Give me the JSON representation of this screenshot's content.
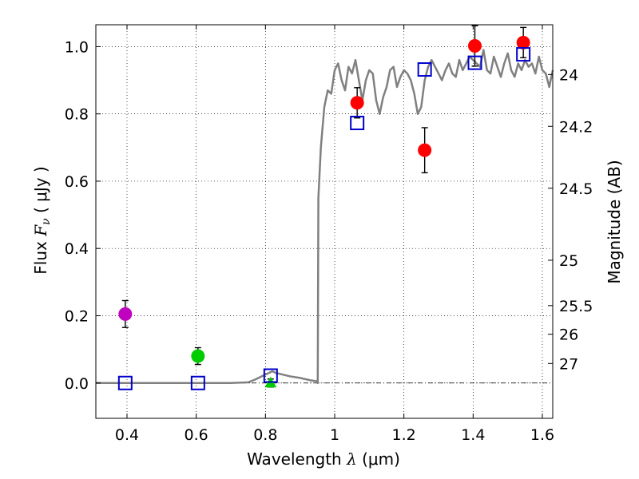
{
  "chart_data": {
    "type": "scatter",
    "xlabel_prefix": "Wavelength  ",
    "xlabel_symbol": "λ",
    "xlabel_suffix": " (μm)",
    "ylabel_prefix": "Flux  ",
    "ylabel_symbol": "F",
    "ylabel_subscript": "ν",
    "ylabel_suffix": "  ( μJy )",
    "y2label": "Magnitude (AB)",
    "xlim": [
      0.31,
      1.63
    ],
    "ylim": [
      -0.105,
      1.065
    ],
    "x_ticks": [
      0.4,
      0.6,
      0.8,
      1.0,
      1.2,
      1.4,
      1.6
    ],
    "x_tick_labels": [
      "0.4",
      "0.6",
      "0.8",
      "1",
      "1.2",
      "1.4",
      "1.6"
    ],
    "y_ticks": [
      0.0,
      0.2,
      0.4,
      0.6,
      0.8,
      1.0
    ],
    "y_tick_labels": [
      "0.0",
      "0.2",
      "0.4",
      "0.6",
      "0.8",
      "1.0"
    ],
    "mag_ticks": [
      {
        "label": "24",
        "flux": 0.917
      },
      {
        "label": "24.2",
        "flux": 0.763
      },
      {
        "label": "24.5",
        "flux": 0.579
      },
      {
        "label": "25",
        "flux": 0.365
      },
      {
        "label": "25.5",
        "flux": 0.23
      },
      {
        "label": "26",
        "flux": 0.145
      },
      {
        "label": "27",
        "flux": 0.058
      }
    ],
    "grid": true,
    "zero_line": true,
    "model_spectrum": {
      "name": "model SED",
      "color": "#808080",
      "x": [
        0.31,
        0.5,
        0.7,
        0.75,
        0.77,
        0.79,
        0.81,
        0.82,
        0.83,
        0.85,
        0.87,
        0.9,
        0.93,
        0.95,
        0.951,
        0.953,
        0.96,
        0.97,
        0.98,
        0.99,
        1.0,
        1.01,
        1.02,
        1.03,
        1.04,
        1.05,
        1.06,
        1.07,
        1.08,
        1.09,
        1.1,
        1.11,
        1.12,
        1.13,
        1.14,
        1.15,
        1.16,
        1.17,
        1.18,
        1.19,
        1.2,
        1.21,
        1.22,
        1.23,
        1.24,
        1.25,
        1.26,
        1.27,
        1.28,
        1.29,
        1.3,
        1.31,
        1.32,
        1.33,
        1.34,
        1.35,
        1.36,
        1.37,
        1.38,
        1.39,
        1.4,
        1.41,
        1.42,
        1.43,
        1.44,
        1.45,
        1.46,
        1.47,
        1.48,
        1.49,
        1.5,
        1.51,
        1.52,
        1.53,
        1.54,
        1.55,
        1.56,
        1.57,
        1.58,
        1.59,
        1.6,
        1.61,
        1.62,
        1.63
      ],
      "y": [
        0.0,
        0.0,
        0.0,
        0.002,
        0.01,
        0.02,
        0.03,
        0.035,
        0.03,
        0.025,
        0.02,
        0.015,
        0.008,
        0.005,
        0.0,
        0.55,
        0.7,
        0.82,
        0.87,
        0.86,
        0.93,
        0.95,
        0.9,
        0.87,
        0.94,
        0.92,
        0.96,
        0.9,
        0.84,
        0.9,
        0.93,
        0.92,
        0.84,
        0.8,
        0.85,
        0.88,
        0.93,
        0.94,
        0.88,
        0.91,
        0.93,
        0.92,
        0.9,
        0.86,
        0.8,
        0.82,
        0.9,
        0.94,
        0.96,
        0.94,
        0.92,
        0.9,
        0.93,
        0.95,
        0.92,
        0.91,
        0.96,
        0.93,
        0.95,
        0.97,
        0.96,
        0.95,
        0.94,
        0.99,
        0.93,
        0.92,
        0.97,
        0.94,
        0.91,
        0.95,
        0.98,
        0.93,
        0.91,
        0.95,
        0.93,
        0.96,
        0.94,
        0.95,
        0.92,
        0.97,
        0.93,
        0.92,
        0.88,
        0.93
      ]
    },
    "series": [
      {
        "name": "photometry-red",
        "marker": "circle",
        "color": "#ff0000",
        "points": [
          {
            "x": 1.065,
            "y": 0.833,
            "err": 0.045
          },
          {
            "x": 1.26,
            "y": 0.692,
            "err": 0.067
          },
          {
            "x": 1.405,
            "y": 1.002,
            "err": 0.06
          },
          {
            "x": 1.545,
            "y": 1.012,
            "err": 0.045
          }
        ]
      },
      {
        "name": "photometry-magenta",
        "marker": "circle",
        "color": "#bf00bf",
        "points": [
          {
            "x": 0.395,
            "y": 0.205,
            "err": 0.04
          }
        ]
      },
      {
        "name": "photometry-green",
        "marker": "circle",
        "color": "#00cc00",
        "points": [
          {
            "x": 0.605,
            "y": 0.08,
            "err": 0.025
          }
        ]
      },
      {
        "name": "upper-limit-green",
        "marker": "triangle",
        "color": "#00cc00",
        "points": [
          {
            "x": 0.815,
            "y": 0.0,
            "err": 0.012
          }
        ]
      },
      {
        "name": "model-photometry",
        "marker": "square",
        "color": "#0000cc",
        "points": [
          {
            "x": 0.395,
            "y": 0.0
          },
          {
            "x": 0.605,
            "y": 0.0
          },
          {
            "x": 0.815,
            "y": 0.022
          },
          {
            "x": 1.065,
            "y": 0.773
          },
          {
            "x": 1.26,
            "y": 0.932
          },
          {
            "x": 1.405,
            "y": 0.952
          },
          {
            "x": 1.545,
            "y": 0.977
          }
        ]
      }
    ]
  }
}
